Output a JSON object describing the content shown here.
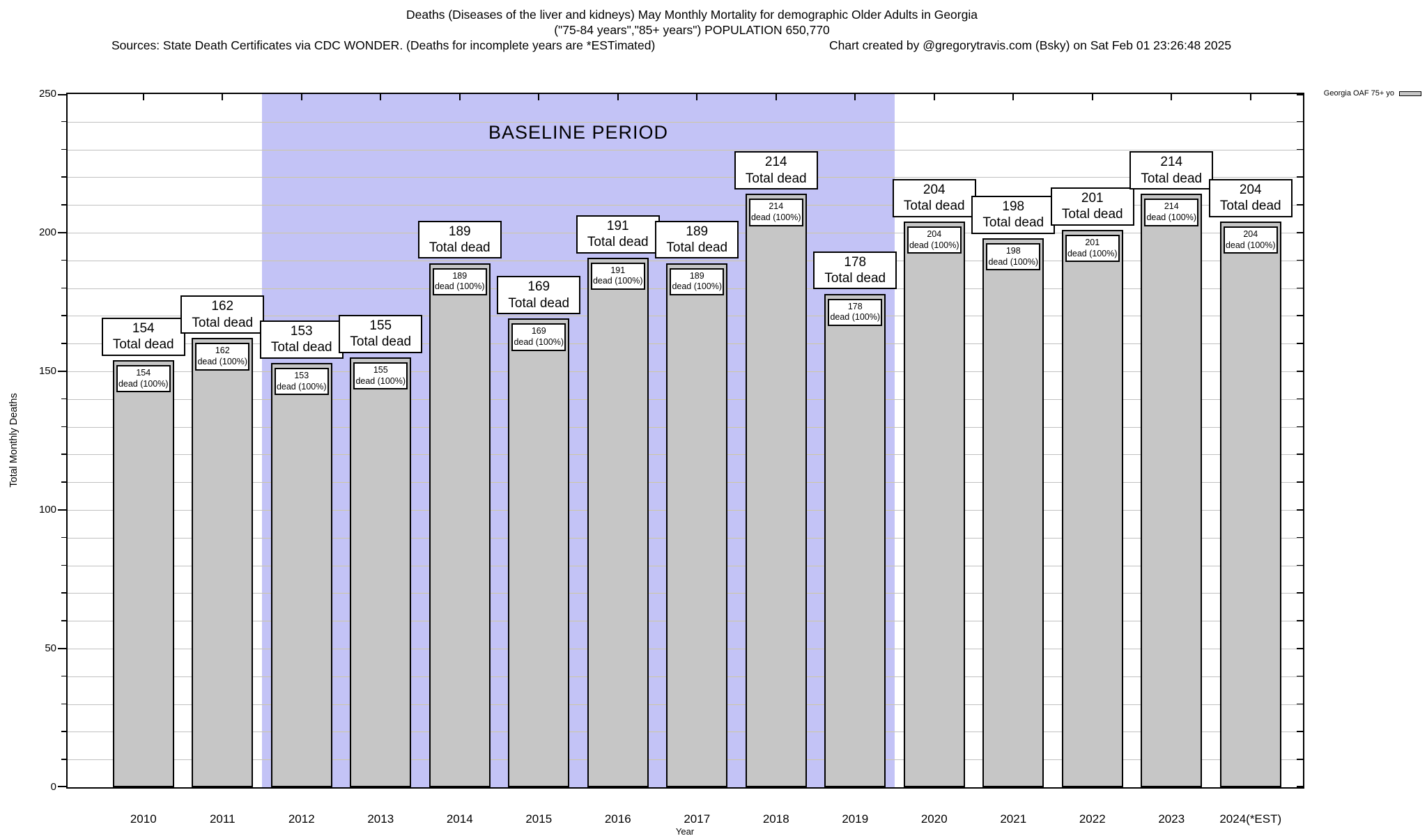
{
  "header": {
    "title_line1": "Deaths (Diseases of the liver and kidneys) May Monthly Mortality for demographic Older Adults in Georgia",
    "title_line2": "(\"75-84 years\",\"85+ years\") POPULATION 650,770",
    "sources": "Sources: State Death Certificates via CDC WONDER. (Deaths for incomplete years are *ESTimated)",
    "credit": "Chart created by @gregorytravis.com (Bsky) on Sat Feb 01 23:26:48 2025"
  },
  "legend": {
    "label": "Georgia OAF 75+ yo",
    "swatch_color": "#c6c6c6",
    "position": "top-right"
  },
  "axes": {
    "ylabel": "Total Monthly Deaths",
    "xlabel": "Year",
    "ylim": [
      0,
      250
    ],
    "ytick_major_step": 50,
    "ytick_minor_step": 10,
    "ytick_labels": [
      "0",
      "50",
      "100",
      "150",
      "200",
      "250"
    ],
    "grid": true
  },
  "baseline_region": {
    "label": "BASELINE PERIOD",
    "from_year": "2012",
    "to_year": "2019",
    "fill_color": "#c3c3f6"
  },
  "chart_data": {
    "type": "bar",
    "title": "Deaths (Diseases of the liver and kidneys) May Monthly Mortality for demographic Older Adults in Georgia",
    "categories": [
      "2010",
      "2011",
      "2012",
      "2013",
      "2014",
      "2015",
      "2016",
      "2017",
      "2018",
      "2019",
      "2020",
      "2021",
      "2022",
      "2023",
      "2024(*EST)"
    ],
    "series": [
      {
        "name": "Georgia OAF 75+ yo",
        "values": [
          154,
          162,
          153,
          155,
          189,
          169,
          191,
          189,
          214,
          178,
          204,
          198,
          201,
          214,
          204
        ]
      }
    ],
    "xlabel": "Year",
    "ylabel": "Total Monthly Deaths",
    "ylim": [
      0,
      250
    ],
    "legend_position": "top-right",
    "bar_color": "#c6c6c6",
    "bar_border_color": "#000000",
    "annotations": {
      "top_label_suffix": "Total dead",
      "inner_label_suffix": "dead (100%)"
    }
  },
  "colors": {
    "background": "#ffffff",
    "grid_line": "#c0c0c0",
    "grid_line_in_region": "#cdc7a2",
    "axis": "#000000",
    "text": "#000000"
  }
}
